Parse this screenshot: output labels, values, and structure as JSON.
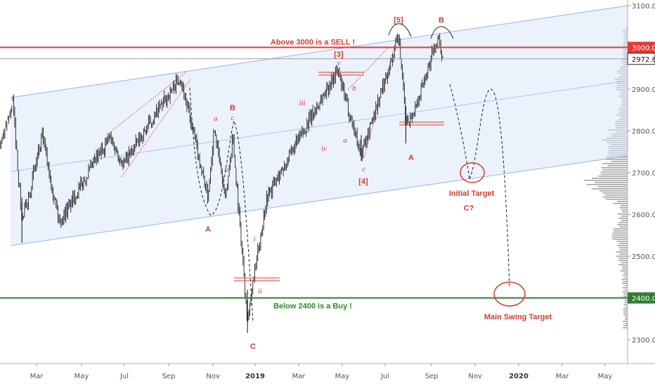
{
  "chart_data": {
    "type": "candlestick",
    "instrument_level_labels": {
      "last_price": "2972.6",
      "resistance": "3000.0",
      "support": "2400.0"
    },
    "ylim": [
      2250,
      3110
    ],
    "y_ticks": [
      "3100.0",
      "3000.0",
      "2900.0",
      "2800.0",
      "2700.0",
      "2600.0",
      "2500.0",
      "2400.0",
      "2300.0"
    ],
    "x_ticks": [
      "Mar",
      "May",
      "Jul",
      "Sep",
      "Nov",
      "2019",
      "Mar",
      "May",
      "Jul",
      "Sep",
      "Nov",
      "2020",
      "Mar",
      "May"
    ],
    "x_ticks_bold": [
      "2019",
      "2020"
    ],
    "horizontal_lines": [
      {
        "label": "Above 3000 is a SELL !",
        "value": 3000,
        "color": "#e53935"
      },
      {
        "label": "Below 2400 is a Buy !",
        "value": 2400,
        "color": "#2e7d32"
      },
      {
        "label": "",
        "value": 2972.6,
        "color": "#9e9e9e"
      }
    ],
    "approximate_price_path": [
      {
        "date": "2018-01-26",
        "close": 2872
      },
      {
        "date": "2018-02-08",
        "close": 2581
      },
      {
        "date": "2018-03-09",
        "close": 2786
      },
      {
        "date": "2018-04-02",
        "close": 2581
      },
      {
        "date": "2018-06-12",
        "close": 2786
      },
      {
        "date": "2018-07-01",
        "close": 2720
      },
      {
        "date": "2018-09-20",
        "close": 2930
      },
      {
        "date": "2018-10-29",
        "close": 2641
      },
      {
        "date": "2018-11-07",
        "close": 2813
      },
      {
        "date": "2018-11-23",
        "close": 2632
      },
      {
        "date": "2018-12-03",
        "close": 2790
      },
      {
        "date": "2018-12-24",
        "close": 2351
      },
      {
        "date": "2019-01-20",
        "close": 2640
      },
      {
        "date": "2019-04-30",
        "close": 2945
      },
      {
        "date": "2019-06-03",
        "close": 2744
      },
      {
        "date": "2019-07-26",
        "close": 3025
      },
      {
        "date": "2019-08-05",
        "close": 2822
      },
      {
        "date": "2019-08-15",
        "close": 2840
      },
      {
        "date": "2019-09-19",
        "close": 3021
      },
      {
        "date": "2019-09-27",
        "close": 2972.6
      }
    ],
    "wave_labels": [
      {
        "text": "A",
        "style": "major"
      },
      {
        "text": "B",
        "style": "major"
      },
      {
        "text": "C",
        "style": "major"
      },
      {
        "text": "a",
        "style": "minor"
      },
      {
        "text": "b",
        "style": "minor"
      },
      {
        "text": "c",
        "style": "minor"
      },
      {
        "text": "i",
        "style": "minor"
      },
      {
        "text": "ii",
        "style": "minor"
      },
      {
        "text": "iii",
        "style": "minor"
      },
      {
        "text": "iv",
        "style": "minor"
      },
      {
        "text": "a",
        "style": "minor"
      },
      {
        "text": "b",
        "style": "minor"
      },
      {
        "text": "c",
        "style": "minor"
      },
      {
        "text": "v",
        "style": "minor"
      },
      {
        "text": "[3]",
        "style": "major"
      },
      {
        "text": "[4]",
        "style": "major"
      },
      {
        "text": "[5]",
        "style": "major"
      },
      {
        "text": "A",
        "style": "major"
      },
      {
        "text": "B",
        "style": "major"
      }
    ],
    "targets": {
      "initial_title": "Initial Target",
      "initial_sub": "C?",
      "main": "Main Swing Target"
    },
    "colors": {
      "candle": "#222222",
      "channel_fill": "#dbe8f9",
      "channel_line": "#90b4ea",
      "annotation": "#d63b30",
      "volume_profile": "#9e9e9e",
      "resistance": "#e53935",
      "support": "#2e7d32"
    }
  }
}
